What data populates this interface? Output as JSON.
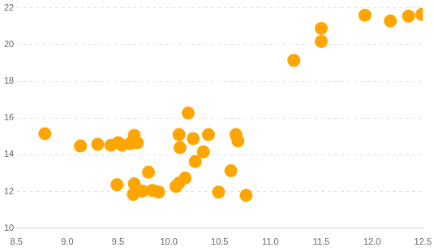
{
  "chart_data": {
    "type": "scatter",
    "x": [
      8.78,
      9.13,
      9.3,
      9.43,
      9.5,
      9.54,
      9.62,
      9.66,
      9.69,
      9.49,
      9.66,
      9.65,
      9.74,
      9.8,
      9.84,
      9.9,
      10.07,
      10.1,
      10.16,
      10.1,
      10.11,
      10.19,
      10.24,
      10.26,
      10.34,
      10.39,
      10.49,
      10.61,
      10.66,
      10.68,
      10.76,
      11.23,
      11.5,
      11.5,
      11.93,
      12.18,
      12.36,
      12.49
    ],
    "values": [
      15.15,
      14.48,
      14.57,
      14.52,
      14.66,
      14.52,
      14.61,
      15.06,
      14.66,
      12.37,
      12.42,
      11.84,
      12.02,
      13.05,
      12.06,
      11.97,
      12.28,
      12.46,
      12.73,
      15.1,
      14.39,
      16.27,
      14.88,
      13.63,
      14.16,
      15.1,
      11.97,
      13.13,
      15.1,
      14.75,
      11.79,
      19.14,
      20.88,
      20.17,
      21.6,
      21.28,
      21.55,
      21.64
    ],
    "color": "#ffa500",
    "xlim": [
      8.5,
      12.5
    ],
    "xticks": [
      8.5,
      {
        "value": 9,
        "label": "9.0"
      },
      9.5,
      {
        "value": 10,
        "label": "10.0"
      },
      10.5,
      {
        "value": 11,
        "label": "11.0"
      },
      11.5,
      {
        "value": 12,
        "label": "12.0"
      },
      12.5
    ],
    "ylim": [
      10,
      22
    ],
    "yticks": [
      10,
      12,
      14,
      16,
      18,
      20,
      22
    ],
    "grid": true
  }
}
